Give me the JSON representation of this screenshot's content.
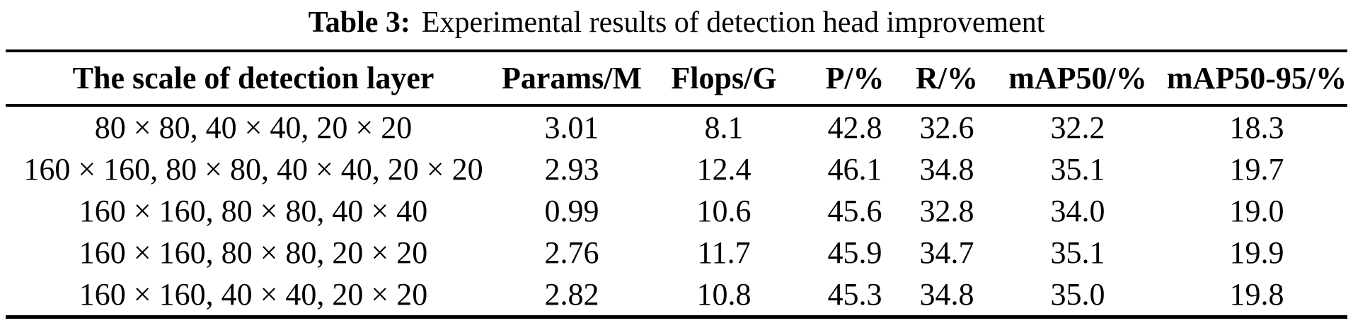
{
  "caption": {
    "label": "Table 3:",
    "text": "Experimental results of detection head improvement"
  },
  "table": {
    "columns": [
      "The scale of detection layer",
      "Params/M",
      "Flops/G",
      "P/%",
      "R/%",
      "mAP50/%",
      "mAP50-95/%"
    ],
    "rows": [
      [
        "80 × 80, 40 × 40, 20 × 20",
        "3.01",
        "8.1",
        "42.8",
        "32.6",
        "32.2",
        "18.3"
      ],
      [
        "160 × 160, 80 × 80, 40 × 40, 20 × 20",
        "2.93",
        "12.4",
        "46.1",
        "34.8",
        "35.1",
        "19.7"
      ],
      [
        "160 × 160, 80 × 80, 40 × 40",
        "0.99",
        "10.6",
        "45.6",
        "32.8",
        "34.0",
        "19.0"
      ],
      [
        "160 × 160, 80 × 80, 20 × 20",
        "2.76",
        "11.7",
        "45.9",
        "34.7",
        "35.1",
        "19.9"
      ],
      [
        "160 × 160, 40 × 40, 20 × 20",
        "2.82",
        "10.8",
        "45.3",
        "34.8",
        "35.0",
        "19.8"
      ]
    ]
  },
  "colors": {
    "text": "#000000",
    "background": "#ffffff",
    "rule": "#000000"
  }
}
